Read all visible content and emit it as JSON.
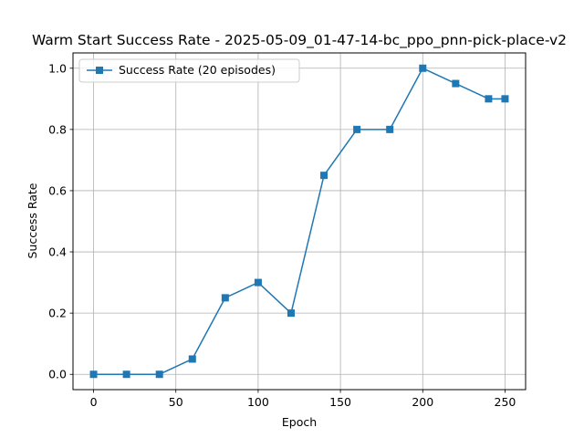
{
  "chart_data": {
    "type": "line",
    "title": "Warm Start Success Rate - 2025-05-09_01-47-14-bc_ppo_pnn-pick-place-v2",
    "xlabel": "Epoch",
    "ylabel": "Success Rate",
    "xlim": [
      -12.5,
      262.5
    ],
    "ylim": [
      -0.05,
      1.05
    ],
    "xticks": [
      0,
      50,
      100,
      150,
      200,
      250
    ],
    "xtick_labels": [
      "0",
      "50",
      "100",
      "150",
      "200",
      "250"
    ],
    "yticks": [
      0.0,
      0.2,
      0.4,
      0.6,
      0.8,
      1.0
    ],
    "ytick_labels": [
      "0.0",
      "0.2",
      "0.4",
      "0.6",
      "0.8",
      "1.0"
    ],
    "grid": true,
    "legend_position": "upper-left",
    "series": [
      {
        "name": "Success Rate (20 episodes)",
        "color": "#1f77b4",
        "marker": "square",
        "x": [
          0,
          20,
          40,
          60,
          80,
          100,
          120,
          140,
          160,
          180,
          200,
          220,
          240,
          250
        ],
        "y": [
          0.0,
          0.0,
          0.0,
          0.05,
          0.25,
          0.3,
          0.2,
          0.65,
          0.8,
          0.8,
          1.0,
          0.95,
          0.9,
          0.9
        ]
      }
    ]
  }
}
